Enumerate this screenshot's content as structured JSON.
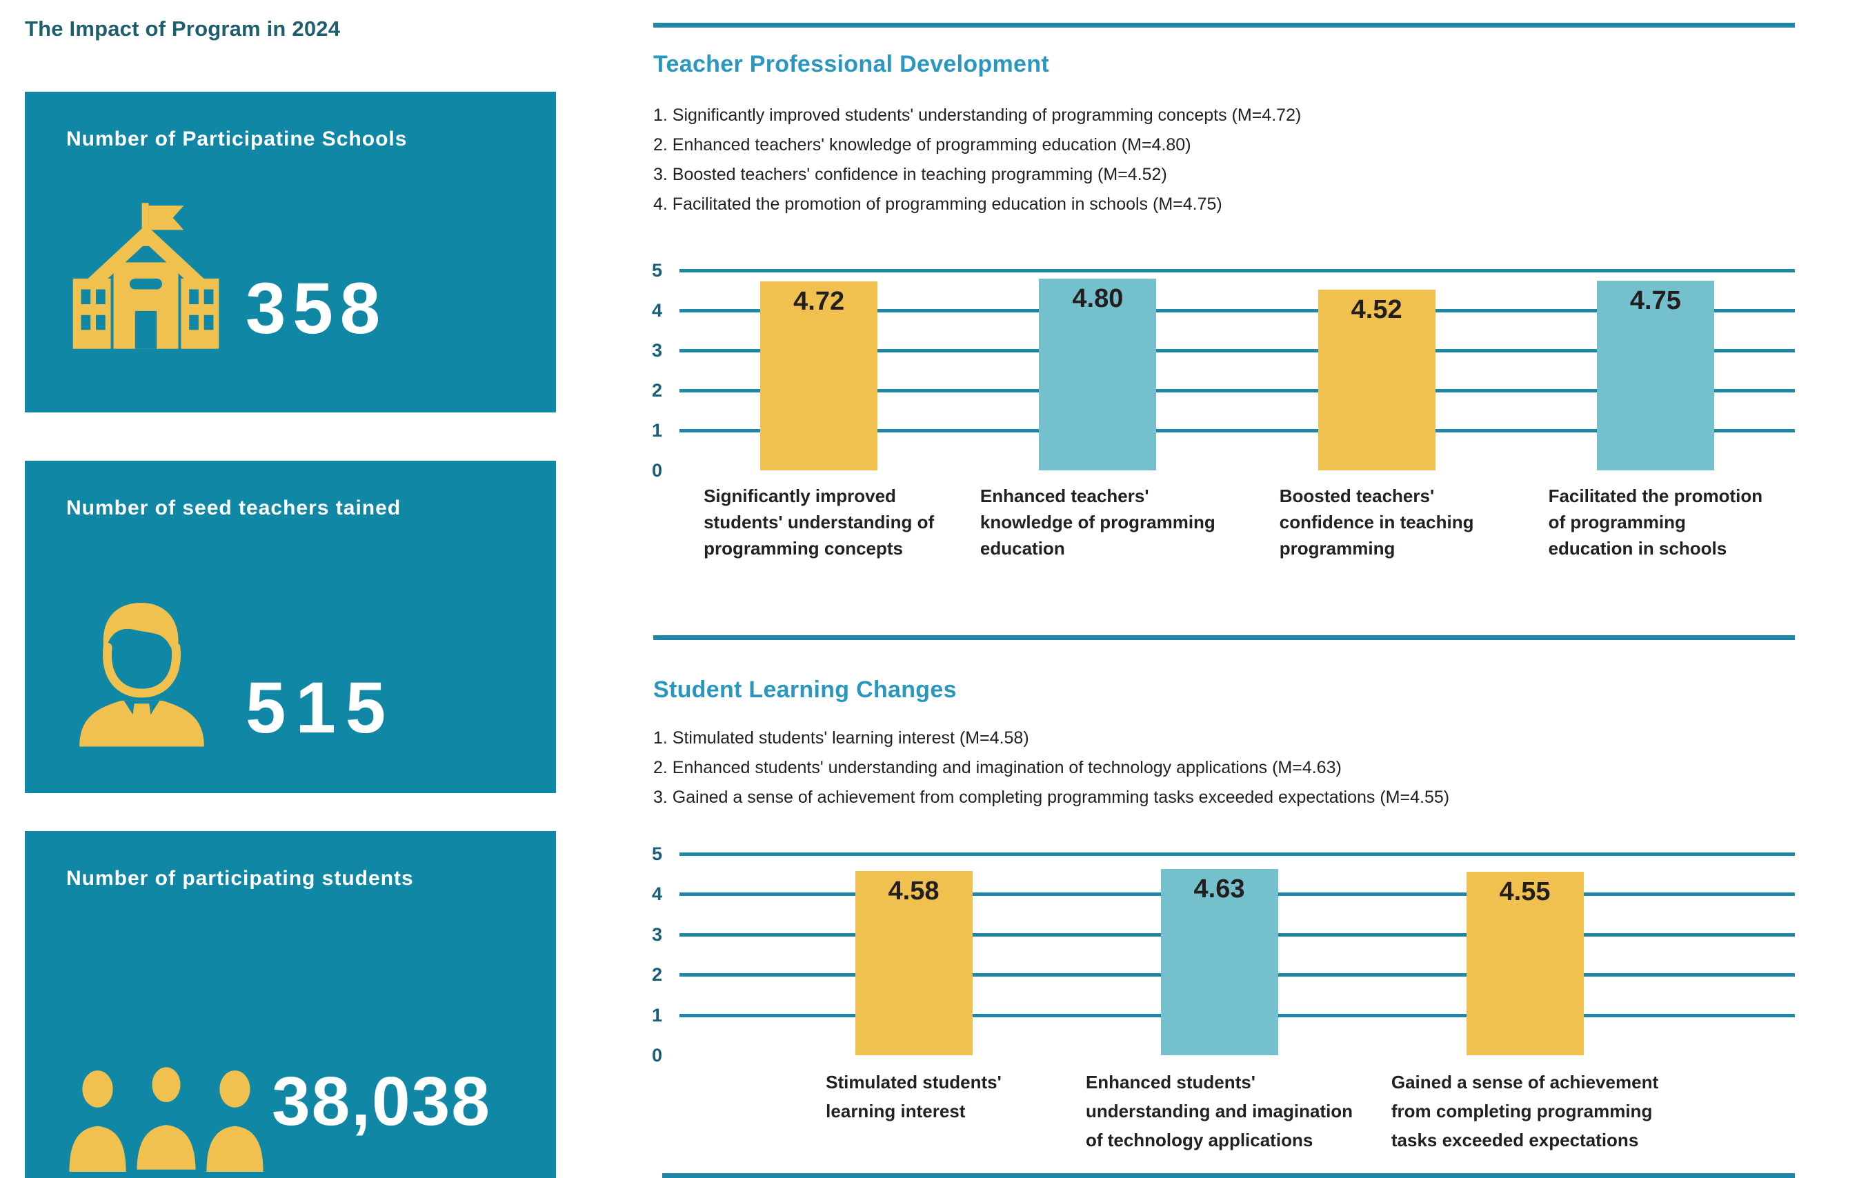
{
  "page_title": "The Impact of Program in 2024",
  "colors": {
    "card_teal": "#1187A6",
    "grid_teal": "#1F86A5",
    "heading_blue": "#2997BF",
    "title_dark_teal": "#1E5F6E",
    "bar_yellow": "#F0C14E",
    "bar_teal": "#74C0CC",
    "axis_label": "#17607A",
    "text_dark": "#242021",
    "icon_yellow": "#F0C14E",
    "white": "#FFFFFF"
  },
  "stat_cards": [
    {
      "label": "Number of Participatine Schools",
      "value": "358",
      "icon": "school-icon"
    },
    {
      "label": "Number of seed teachers tained",
      "value": "515",
      "icon": "teacher-icon"
    },
    {
      "label": "Number of participating students",
      "value": "38,038",
      "icon": "students-icon"
    }
  ],
  "sections": [
    {
      "heading": "Teacher Professional Development",
      "findings": [
        "1. Significantly improved students' understanding of programming concepts (M=4.72)",
        "2. Enhanced teachers' knowledge of programming education (M=4.80)",
        "3. Boosted teachers' confidence in teaching programming (M=4.52)",
        "4. Facilitated the promotion of programming education in schools (M=4.75)"
      ]
    },
    {
      "heading": "Student Learning Changes",
      "findings": [
        "1. Stimulated students' learning interest (M=4.58)",
        "2. Enhanced students' understanding and imagination of technology applications (M=4.63)",
        "3. Gained a sense of achievement from completing programming tasks exceeded expectations (M=4.55)"
      ]
    }
  ],
  "chart_data": [
    {
      "type": "bar",
      "title": "Teacher Professional Development",
      "categories": [
        "Significantly improved students' understanding of programming concepts",
        "Enhanced teachers' knowledge of programming education",
        "Boosted teachers' confidence in teaching programming",
        "Facilitated the promotion of programming education in schools"
      ],
      "category_lines": [
        [
          "Significantly improved",
          "students' understanding of",
          "programming concepts"
        ],
        [
          "Enhanced teachers'",
          "knowledge of programming",
          "education"
        ],
        [
          "Boosted teachers'",
          "confidence in teaching",
          "programming"
        ],
        [
          "Facilitated the promotion",
          "of programming",
          "education in schools"
        ]
      ],
      "values": [
        4.72,
        4.8,
        4.52,
        4.75
      ],
      "value_labels": [
        "4.72",
        "4.80",
        "4.52",
        "4.75"
      ],
      "bar_colors": [
        "#F0C14E",
        "#74C0CC",
        "#F0C14E",
        "#74C0CC"
      ],
      "xlabel": "",
      "ylabel": "",
      "ylim": [
        0,
        5
      ],
      "yticks": [
        5,
        4,
        3,
        2,
        1,
        0
      ],
      "grid": true,
      "legend": false
    },
    {
      "type": "bar",
      "title": "Student Learning Changes",
      "categories": [
        "Stimulated students' learning interest",
        "Enhanced students' understanding and imagination of technology applications",
        "Gained a sense of achievement from completing programming tasks exceeded expectations"
      ],
      "category_lines": [
        [
          "Stimulated students'",
          "learning interest"
        ],
        [
          "Enhanced students'",
          "understanding and imagination",
          "of technology applications"
        ],
        [
          "Gained a sense of achievement",
          "from completing programming",
          "tasks exceeded expectations"
        ]
      ],
      "values": [
        4.58,
        4.63,
        4.55
      ],
      "value_labels": [
        "4.58",
        "4.63",
        "4.55"
      ],
      "bar_colors": [
        "#F0C14E",
        "#74C0CC",
        "#F0C14E"
      ],
      "xlabel": "",
      "ylabel": "",
      "ylim": [
        0,
        5
      ],
      "yticks": [
        5,
        4,
        3,
        2,
        1,
        0
      ],
      "grid": true,
      "legend": false
    }
  ]
}
